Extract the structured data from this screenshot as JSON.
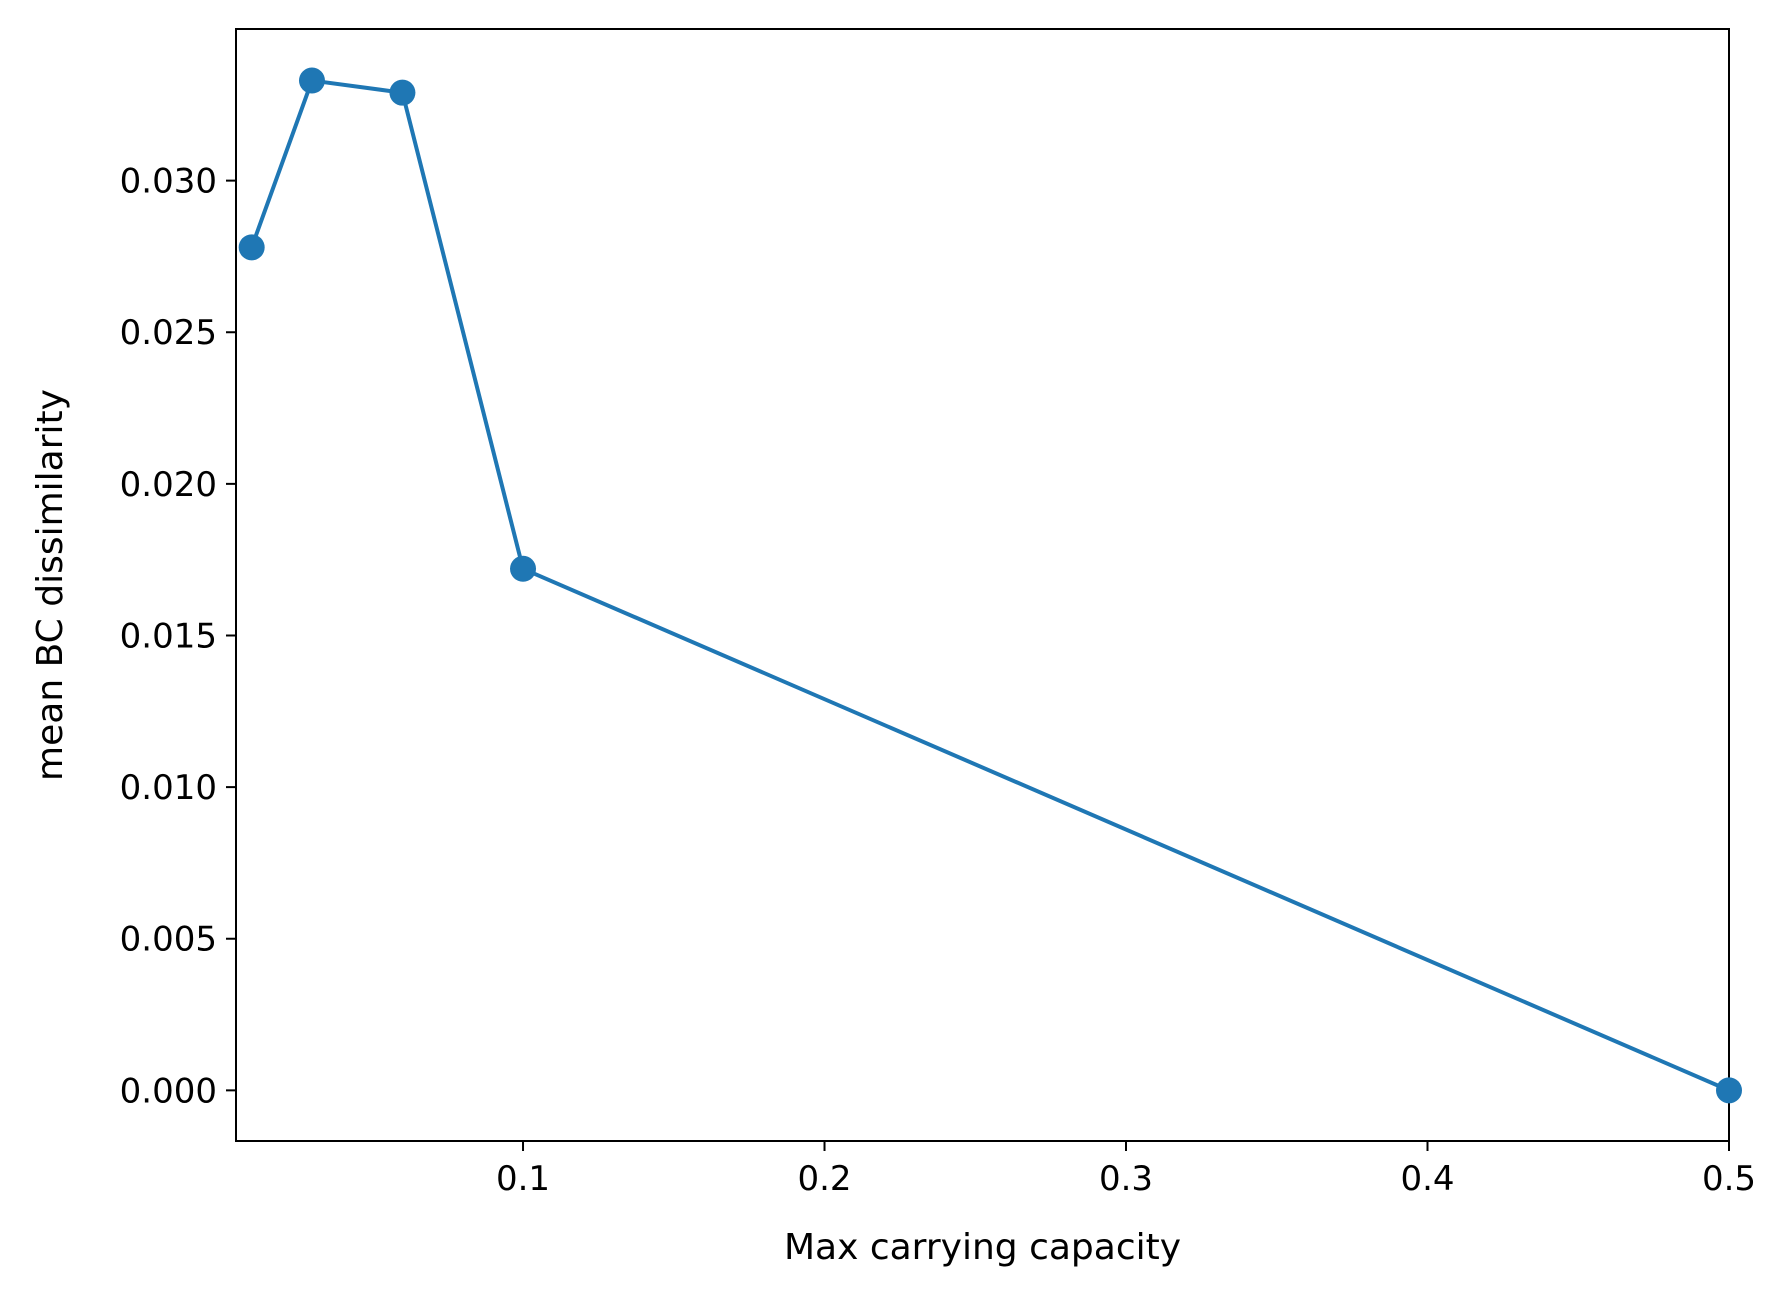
{
  "chart_data": {
    "type": "line",
    "title": "",
    "xlabel": "Max carrying capacity",
    "ylabel": "mean BC dissimilarity",
    "x": [
      0.01,
      0.03,
      0.06,
      0.1,
      0.5
    ],
    "series": [
      {
        "values": [
          0.0278,
          0.0333,
          0.0329,
          0.0172,
          0.0
        ],
        "color": "#1f77b4",
        "marker": "circle"
      }
    ],
    "xlim": [
      0.0048,
      0.5
    ],
    "ylim": [
      -0.00167,
      0.035
    ],
    "xticks": [
      0.1,
      0.2,
      0.3,
      0.4,
      0.5
    ],
    "xtick_labels": [
      "0.1",
      "0.2",
      "0.3",
      "0.4",
      "0.5"
    ],
    "yticks": [
      0.0,
      0.005,
      0.01,
      0.015,
      0.02,
      0.025,
      0.03
    ],
    "ytick_labels": [
      "0.000",
      "0.005",
      "0.010",
      "0.015",
      "0.020",
      "0.025",
      "0.030"
    ],
    "grid": false,
    "legend": "none"
  }
}
